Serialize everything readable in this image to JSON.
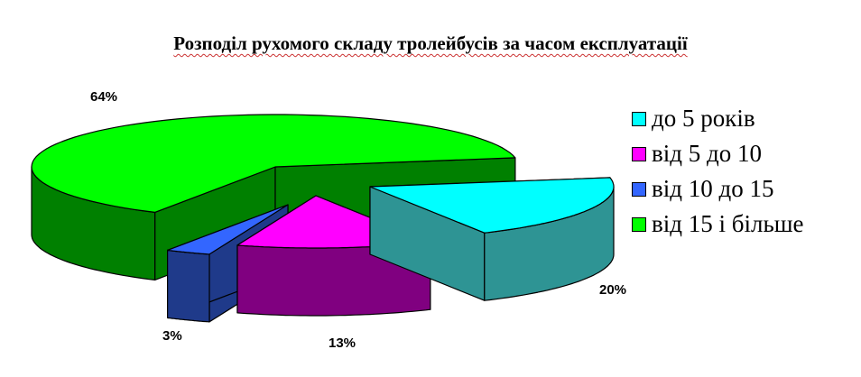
{
  "chart_data": {
    "type": "pie",
    "style": "3d-exploded",
    "title": "Розподіл рухомого складу тролейбусів за часом експлуатації",
    "categories": [
      "до 5 років",
      "від 5 до 10",
      "від 10 до 15",
      "від 15 і більше"
    ],
    "values": [
      20,
      13,
      3,
      64
    ],
    "data_labels": [
      "20%",
      "13%",
      "3%",
      "64%"
    ],
    "colors": [
      "#00FFFF",
      "#FF00FF",
      "#3366FF",
      "#00FF00"
    ],
    "side_colors": [
      "#2E9494",
      "#800080",
      "#1F3A8A",
      "#008000"
    ],
    "legend_position": "right"
  }
}
